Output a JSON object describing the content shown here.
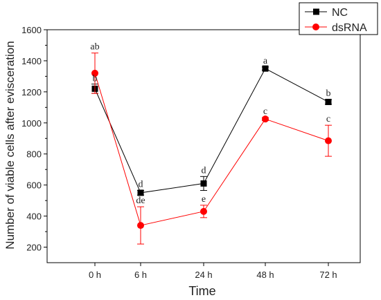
{
  "chart_data": {
    "type": "line",
    "title": "",
    "xlabel": "Time",
    "ylabel": "Number of viable cells after evisceration",
    "categories": [
      "0 h",
      "6 h",
      "24 h",
      "48 h",
      "72 h"
    ],
    "ylim": [
      100,
      1600
    ],
    "yticks": [
      200,
      400,
      600,
      800,
      1000,
      1200,
      1400,
      1600
    ],
    "grid": false,
    "legend_position": "top-right",
    "series": [
      {
        "name": "NC",
        "color": "#000000",
        "marker": "square",
        "values": [
          1220,
          550,
          610,
          1350,
          1135
        ],
        "errors": [
          30,
          15,
          45,
          10,
          15
        ],
        "labels": [
          "b",
          "d",
          "d",
          "a",
          "b"
        ]
      },
      {
        "name": "dsRNA",
        "color": "#ff0000",
        "marker": "circle",
        "values": [
          1320,
          340,
          430,
          1025,
          885
        ],
        "errors": [
          130,
          120,
          40,
          10,
          100
        ],
        "labels": [
          "ab",
          "de",
          "e",
          "c",
          "c"
        ]
      }
    ]
  }
}
